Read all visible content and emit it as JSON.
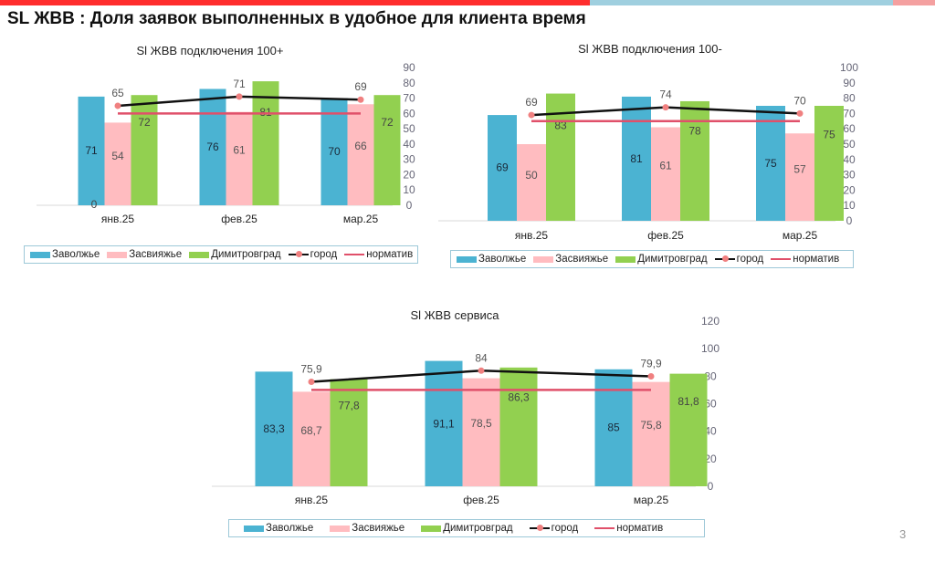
{
  "page": {
    "title": "SL ЖВВ : Доля заявок выполненных в удобное для клиента время",
    "page_number": "3"
  },
  "colors": {
    "zavolzhye": "#4bb3d2",
    "zasviyazhye": "#ffbcc0",
    "dimitrovgrad": "#92d050",
    "gorod": "#111111",
    "gorod_marker": "#f08080",
    "normativ": "#e0506a"
  },
  "legend": [
    "Заволжье",
    "Засвияжье",
    "Димитровград",
    "город",
    "норматив"
  ],
  "chart_data": [
    {
      "type": "bar",
      "title": "Sl ЖВВ подключения 100+",
      "categories": [
        "янв.25",
        "фев.25",
        "мар.25"
      ],
      "series": [
        {
          "name": "Заволжье",
          "values": [
            71,
            76,
            70
          ],
          "labels": [
            "71",
            "76",
            "70"
          ]
        },
        {
          "name": "Засвияжье",
          "values": [
            54,
            61,
            66
          ],
          "labels": [
            "54",
            "61",
            "66"
          ]
        },
        {
          "name": "Димитровград",
          "values": [
            72,
            81,
            72
          ],
          "labels": [
            "72",
            "81",
            "72"
          ]
        },
        {
          "name": "город",
          "type": "line",
          "values": [
            65,
            71,
            69
          ],
          "labels": [
            "65",
            "71",
            "69"
          ]
        },
        {
          "name": "норматив",
          "type": "line",
          "values": [
            60,
            60,
            60
          ]
        }
      ],
      "extra_labels": [
        "0"
      ],
      "yaxis": {
        "position": "right",
        "ylim": [
          0,
          90
        ],
        "ticks": [
          "0",
          "10",
          "20",
          "30",
          "40",
          "50",
          "60",
          "70",
          "80",
          "90"
        ]
      },
      "legend_position": "bottom"
    },
    {
      "type": "bar",
      "title": "Sl ЖВВ подключения 100-",
      "categories": [
        "янв.25",
        "фев.25",
        "мар.25"
      ],
      "series": [
        {
          "name": "Заволжье",
          "values": [
            69,
            81,
            75
          ],
          "labels": [
            "69",
            "81",
            "75"
          ]
        },
        {
          "name": "Засвияжье",
          "values": [
            50,
            61,
            57
          ],
          "labels": [
            "50",
            "61",
            "57"
          ]
        },
        {
          "name": "Димитровград",
          "values": [
            83,
            78,
            75
          ],
          "labels": [
            "83",
            "78",
            "75"
          ]
        },
        {
          "name": "город",
          "type": "line",
          "values": [
            69,
            74,
            70
          ],
          "labels": [
            "69",
            "74",
            "70"
          ]
        },
        {
          "name": "норматив",
          "type": "line",
          "values": [
            65,
            65,
            65
          ]
        }
      ],
      "yaxis": {
        "position": "right",
        "ylim": [
          0,
          100
        ],
        "ticks": [
          "0",
          "10",
          "20",
          "30",
          "40",
          "50",
          "60",
          "70",
          "80",
          "90",
          "100"
        ]
      },
      "legend_position": "bottom"
    },
    {
      "type": "bar",
      "title": "Sl ЖВВ сервиса",
      "categories": [
        "янв.25",
        "фев.25",
        "мар.25"
      ],
      "series": [
        {
          "name": "Заволжье",
          "values": [
            83.3,
            91.1,
            85
          ],
          "labels": [
            "83,3",
            "91,1",
            "85"
          ]
        },
        {
          "name": "Засвияжье",
          "values": [
            68.7,
            78.5,
            75.8
          ],
          "labels": [
            "68,7",
            "78,5",
            "75,8"
          ]
        },
        {
          "name": "Димитровград",
          "values": [
            77.8,
            86.3,
            81.8
          ],
          "labels": [
            "77,8",
            "86,3",
            "81,8"
          ]
        },
        {
          "name": "город",
          "type": "line",
          "values": [
            75.9,
            84,
            79.9
          ],
          "labels": [
            "75,9",
            "84",
            "79,9"
          ]
        },
        {
          "name": "норматив",
          "type": "line",
          "values": [
            70,
            70,
            70
          ]
        }
      ],
      "yaxis": {
        "position": "right",
        "ylim": [
          0,
          120
        ],
        "ticks": [
          "0",
          "20",
          "40",
          "60",
          "80",
          "100",
          "120"
        ]
      },
      "legend_position": "bottom"
    }
  ]
}
